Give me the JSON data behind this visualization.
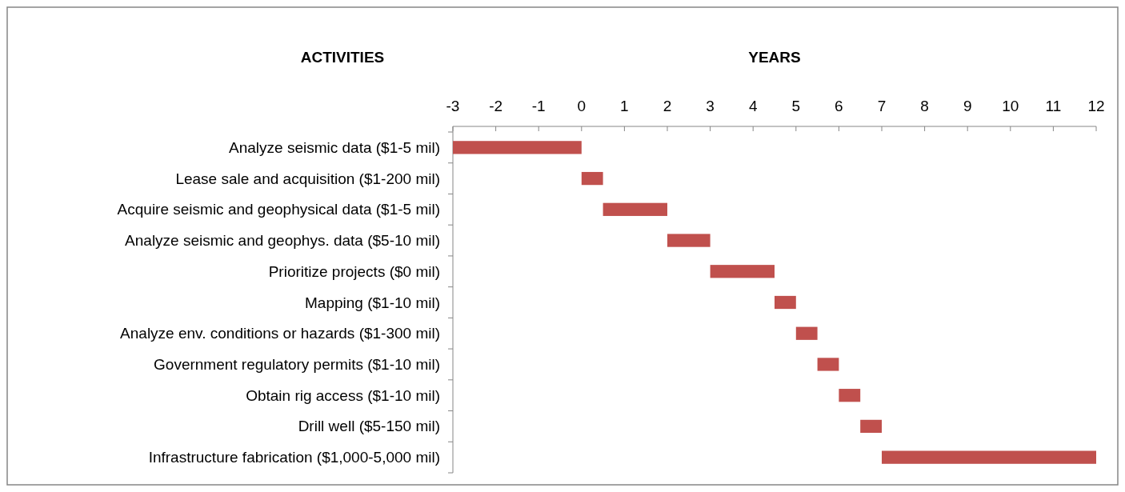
{
  "chart_data": {
    "type": "bar",
    "orientation": "horizontal",
    "xlabel": "YEARS",
    "ylabel": "ACTIVITIES",
    "categories": [
      "Analyze seismic data ($1-5 mil)",
      "Lease sale and acquisition ($1-200 mil)",
      "Acquire seismic and geophysical data ($1-5 mil)",
      "Analyze seismic and geophys. data ($5-10 mil)",
      "Prioritize projects ($0 mil)",
      "Mapping ($1-10 mil)",
      "Analyze env. conditions or hazards ($1-300 mil)",
      "Government regulatory permits ($1-10 mil)",
      "Obtain rig access ($1-10 mil)",
      "Drill well ($5-150 mil)",
      "Infrastructure fabrication ($1,000-5,000 mil)"
    ],
    "base": [
      -3,
      0,
      0.5,
      2,
      3,
      4.5,
      5,
      5.5,
      6,
      6.5,
      7
    ],
    "values": [
      3,
      0.5,
      1.5,
      1,
      1.5,
      0.5,
      0.5,
      0.5,
      0.5,
      0.5,
      5
    ],
    "color": "#c0504d",
    "xlim": [
      -3,
      12
    ],
    "xticks": [
      -3,
      -2,
      -1,
      0,
      1,
      2,
      3,
      4,
      5,
      6,
      7,
      8,
      9,
      10,
      11,
      12
    ],
    "grid": false
  }
}
